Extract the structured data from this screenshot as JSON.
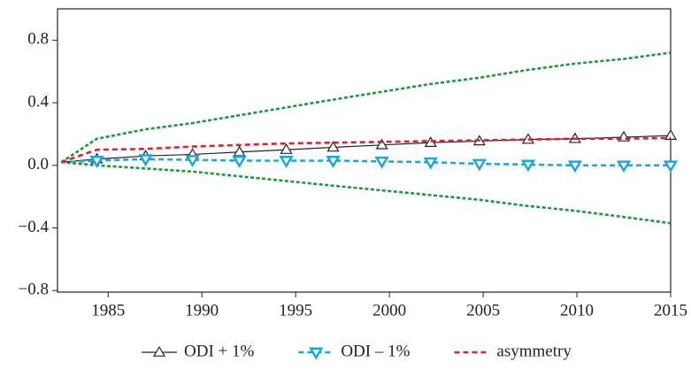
{
  "chart_data": {
    "type": "line",
    "x": [
      1982.5,
      1984.4,
      1987,
      1989.5,
      1992,
      1994.5,
      1997,
      1999.6,
      2002.2,
      2004.8,
      2007.4,
      2009.9,
      2012.5,
      2015
    ],
    "series": [
      {
        "color": "#1a9a3a",
        "style": "dotted",
        "values": [
          0.02,
          0.17,
          0.23,
          0.27,
          0.32,
          0.37,
          0.42,
          0.47,
          0.52,
          0.56,
          0.61,
          0.65,
          0.68,
          0.72
        ]
      },
      {
        "color": "#1a9a3a",
        "style": "dotted",
        "values": [
          0.02,
          0.0,
          -0.02,
          -0.04,
          -0.07,
          -0.1,
          -0.13,
          -0.16,
          -0.19,
          -0.22,
          -0.26,
          -0.29,
          -0.33,
          -0.37
        ]
      },
      {
        "name": "ODI + 1%",
        "color": "#222222",
        "style": "solid",
        "marker": "triangle-up",
        "values": [
          0.02,
          0.04,
          0.06,
          0.07,
          0.085,
          0.1,
          0.115,
          0.13,
          0.145,
          0.155,
          0.165,
          0.17,
          0.18,
          0.19
        ]
      },
      {
        "name": "ODI – 1%",
        "color": "#1aa7e0",
        "style": "dashed",
        "marker": "triangle-down",
        "values": [
          0.02,
          0.03,
          0.04,
          0.035,
          0.03,
          0.03,
          0.03,
          0.025,
          0.02,
          0.01,
          0.005,
          0.0,
          0.0,
          0.0
        ]
      },
      {
        "name": "asymmetry",
        "color": "#e0202a",
        "style": "dashed",
        "values": [
          0.02,
          0.1,
          0.105,
          0.12,
          0.13,
          0.14,
          0.145,
          0.15,
          0.155,
          0.16,
          0.165,
          0.17,
          0.17,
          0.175
        ]
      }
    ],
    "xlim": [
      1982.3,
      2015
    ],
    "xticks": [
      1985,
      1990,
      1995,
      2000,
      2005,
      2010,
      2015
    ],
    "ylim": [
      -0.81,
      1.0
    ],
    "yticks": [
      {
        "value": -0.8,
        "label": "−0.8"
      },
      {
        "value": -0.4,
        "label": "−0.4"
      },
      {
        "value": 0.0,
        "label": "0.0"
      },
      0.4,
      0.8
    ],
    "legend": "bottom"
  }
}
